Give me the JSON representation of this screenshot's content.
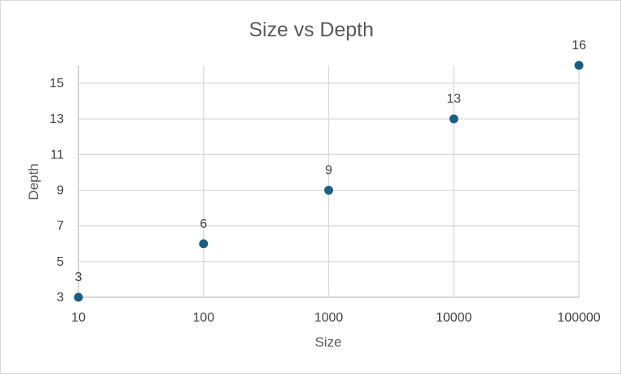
{
  "chart_data": {
    "type": "scatter",
    "title": "Size vs Depth",
    "xlabel": "Size",
    "ylabel": "Depth",
    "x_scale": "log",
    "x": [
      10,
      100,
      1000,
      10000,
      100000
    ],
    "y": [
      3,
      6,
      9,
      13,
      16
    ],
    "data_labels": [
      "3",
      "6",
      "9",
      "13",
      "16"
    ],
    "xlim": [
      10,
      100000
    ],
    "ylim": [
      3,
      16
    ],
    "x_ticks": [
      "10",
      "100",
      "1000",
      "10000",
      "100000"
    ],
    "y_ticks": [
      "3",
      "5",
      "7",
      "9",
      "11",
      "13",
      "15"
    ],
    "grid": true,
    "legend": "none",
    "marker_color": "#1a5f82"
  }
}
